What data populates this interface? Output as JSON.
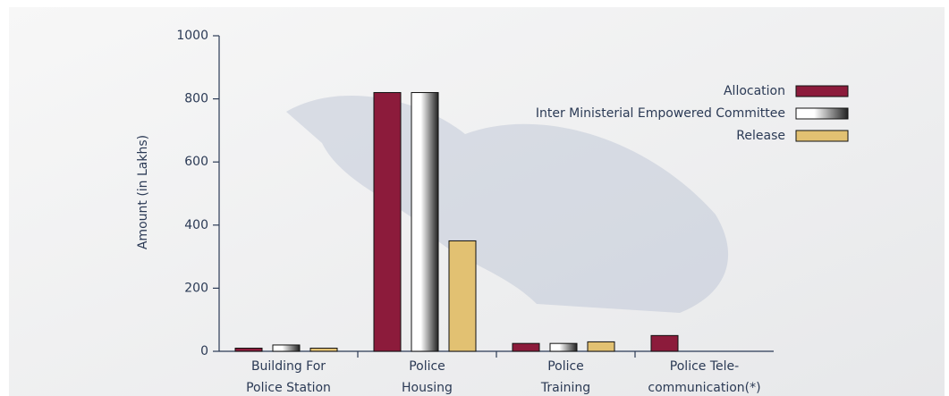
{
  "chart_data": {
    "type": "bar",
    "y_label": "Amount (in Lakhs)",
    "categories": [
      [
        "Building For",
        "Police Station"
      ],
      [
        "Police",
        "Housing"
      ],
      [
        "Police",
        "Training"
      ],
      [
        "Police Tele-",
        "communication(*)"
      ]
    ],
    "series": [
      {
        "name": "Allocation",
        "color": "#8c1b3b",
        "values": [
          10,
          820,
          25,
          50
        ]
      },
      {
        "name": "Inter Ministerial Empowered Committee",
        "color": "#ffffff",
        "values": [
          20,
          820,
          25,
          0
        ]
      },
      {
        "name": "Release",
        "color": "#e2c172",
        "values": [
          10,
          350,
          30,
          0
        ]
      }
    ],
    "ylim": [
      0,
      1000
    ],
    "yticks": [
      0,
      200,
      400,
      600,
      800,
      1000
    ],
    "legend": "upper right"
  }
}
